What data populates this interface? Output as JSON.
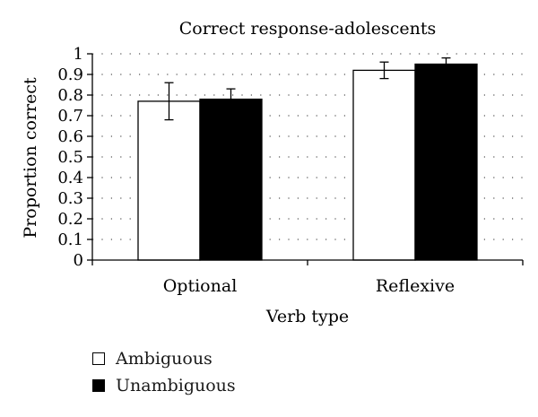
{
  "chart_data": {
    "type": "bar",
    "title": "Correct response-adolescents",
    "xlabel": "Verb type",
    "ylabel": "Proportion correct",
    "categories": [
      "Optional",
      "Reflexive"
    ],
    "series": [
      {
        "name": "Ambiguous",
        "color": "#ffffff",
        "values": [
          0.77,
          0.92
        ],
        "error": [
          0.09,
          0.04
        ]
      },
      {
        "name": "Unambiguous",
        "color": "#000000",
        "values": [
          0.78,
          0.95
        ],
        "error": [
          0.05,
          0.03
        ]
      }
    ],
    "ylim": [
      0,
      1
    ],
    "yticks": [
      "0",
      "0.1",
      "0.2",
      "0.3",
      "0.4",
      "0.5",
      "0.6",
      "0.7",
      "0.8",
      "0.9",
      "1"
    ],
    "grid": "dotted horizontal",
    "legend": "bottom-left"
  }
}
